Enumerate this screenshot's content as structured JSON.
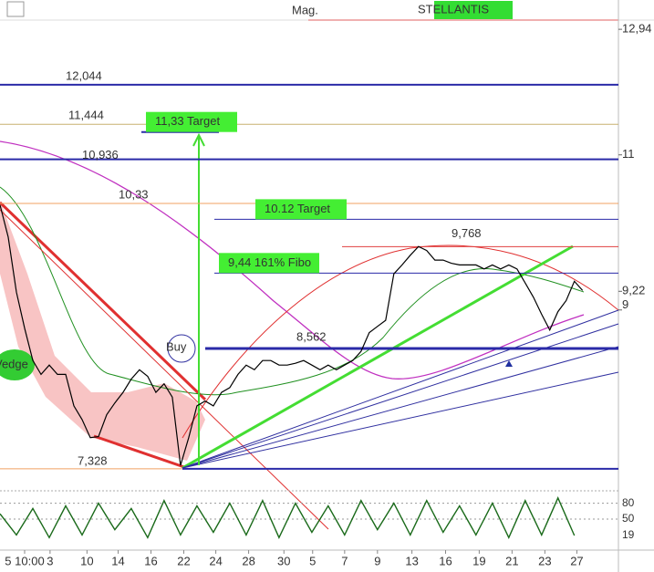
{
  "chart_data": {
    "type": "line",
    "title": "STELLANTIS",
    "subtitle": "Mag.",
    "yscale": "log",
    "ylim": [
      7.19,
      13.44
    ],
    "yticks": [
      {
        "value": 12.94,
        "label": "12,94"
      },
      11,
      {
        "value": 9.22,
        "label": "9,22"
      },
      9
    ],
    "xlim": [
      0,
      79.7
    ],
    "xticks": [
      {
        "value": 3,
        "label": "5 10:00"
      },
      {
        "value": 6.1,
        "label": "3"
      },
      {
        "value": 10.6,
        "label": "10"
      },
      {
        "value": 14.4,
        "label": "14"
      },
      {
        "value": 18.4,
        "label": "16"
      },
      {
        "value": 22.4,
        "label": "22"
      },
      {
        "value": 26.3,
        "label": "24"
      },
      {
        "value": 30.3,
        "label": "28"
      },
      {
        "value": 34.6,
        "label": "30"
      },
      {
        "value": 38.1,
        "label": "5"
      },
      {
        "value": 42,
        "label": "7"
      },
      {
        "value": 46,
        "label": "9"
      },
      {
        "value": 50.2,
        "label": "13"
      },
      {
        "value": 54.3,
        "label": "16"
      },
      {
        "value": 58.4,
        "label": "19"
      },
      {
        "value": 62.4,
        "label": "21"
      },
      {
        "value": 66.4,
        "label": "23"
      },
      {
        "value": 70.3,
        "label": "27"
      }
    ],
    "x": [
      0,
      1,
      2,
      3,
      4,
      5,
      6,
      7,
      8,
      9,
      10,
      11,
      12,
      13,
      14,
      15,
      16,
      17,
      18,
      19,
      20,
      21,
      22,
      23,
      24,
      25,
      26,
      27,
      28,
      29,
      30,
      31,
      32,
      33,
      34,
      35,
      36,
      37,
      38,
      39,
      40,
      41,
      42,
      43,
      44,
      45,
      46,
      47,
      48,
      49,
      50,
      51,
      52,
      53,
      54,
      55,
      56,
      57,
      58,
      59,
      60,
      61,
      62,
      63,
      64,
      65,
      66,
      67,
      68,
      69,
      70,
      71
    ],
    "series": [
      {
        "color": "#000000",
        "values": [
          10.31,
          9.89,
          9.21,
          8.79,
          8.43,
          8.28,
          8.38,
          8.28,
          8.28,
          7.95,
          7.81,
          7.63,
          7.64,
          7.86,
          7.98,
          8.09,
          8.23,
          8.33,
          8.26,
          8.09,
          8.18,
          8.04,
          7.36,
          7.63,
          7.95,
          8.0,
          7.95,
          8.09,
          8.14,
          8.28,
          8.38,
          8.33,
          8.43,
          8.43,
          8.38,
          8.38,
          8.4,
          8.43,
          8.38,
          8.33,
          8.38,
          8.33,
          8.38,
          8.43,
          8.53,
          8.74,
          8.81,
          8.88,
          9.43,
          9.54,
          9.66,
          9.77,
          9.72,
          9.6,
          9.6,
          9.56,
          9.54,
          9.54,
          9.54,
          9.49,
          9.54,
          9.49,
          9.54,
          9.49,
          9.32,
          9.15,
          8.95,
          8.77,
          8.98,
          9.11,
          9.34,
          9.23
        ]
      }
    ],
    "levels": [
      {
        "value": 12.044,
        "label": "12,044",
        "color": "#2a2aa8"
      },
      {
        "value": 11.444,
        "label": "11,444",
        "color": "#c8b070"
      },
      {
        "value": 10.936,
        "label": "10,936",
        "color": "#2a2aa8"
      },
      {
        "value": 10.33,
        "label": "10,33",
        "color": "#f0a060"
      },
      {
        "value": 9.768,
        "label": "9,768",
        "color": "#e04040"
      },
      {
        "value": 8.562,
        "label": "8,562",
        "color": "#2a2aa8"
      },
      {
        "value": 7.328,
        "label": "7,328",
        "color": "#2a2aa8"
      }
    ],
    "targets": [
      {
        "value": 11.33,
        "label": "11,33 Target"
      },
      {
        "value": 10.12,
        "label": "10.12 Target"
      },
      {
        "value": 9.44,
        "label": "9,44  161% Fibo"
      }
    ],
    "notes": [
      "Buy",
      "Vedge"
    ],
    "oscillator": {
      "ylim": [
        0,
        100
      ],
      "yticks": [
        80,
        50
      ],
      "last_label": 19,
      "x": [
        0,
        2,
        4,
        6,
        8,
        10,
        12,
        14,
        16,
        18,
        20,
        22,
        24,
        26,
        28,
        30,
        32,
        34,
        36,
        38,
        40,
        42,
        44,
        46,
        48,
        50,
        52,
        54,
        56,
        58,
        60,
        62,
        64,
        66,
        68,
        70
      ],
      "values": [
        60,
        20,
        70,
        15,
        75,
        20,
        80,
        30,
        70,
        15,
        85,
        20,
        75,
        25,
        80,
        20,
        85,
        15,
        80,
        25,
        75,
        20,
        85,
        30,
        80,
        20,
        85,
        25,
        75,
        20,
        80,
        15,
        85,
        20,
        90,
        19
      ]
    }
  }
}
